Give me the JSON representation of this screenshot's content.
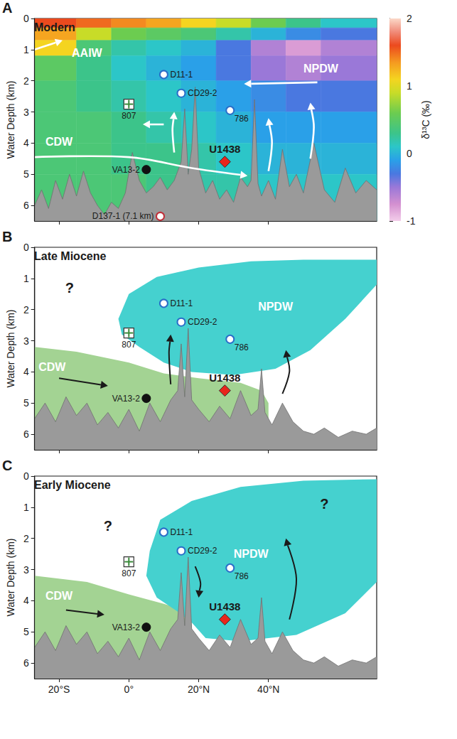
{
  "chart_data": [
    {
      "type": "section",
      "panel": "A",
      "title": "Modern",
      "ylabel": "Water Depth (km)",
      "xlim": [
        -27,
        71
      ],
      "xticks": [
        {
          "value": -20,
          "label": "20°S"
        },
        {
          "value": 0,
          "label": "0°"
        },
        {
          "value": 20,
          "label": "20°N"
        },
        {
          "value": 40,
          "label": "40°N"
        }
      ],
      "ylim": [
        0,
        6.5
      ],
      "yticks": [
        0,
        1,
        2,
        3,
        4,
        5,
        6
      ],
      "tick_labels": "y",
      "grid": false,
      "field": {
        "x_edges": [
          -27,
          -15,
          -5,
          5,
          15,
          25,
          35,
          45,
          55,
          71
        ],
        "y_edges": [
          0,
          0.3,
          0.7,
          1.2,
          2,
          3,
          4,
          5,
          6.5
        ],
        "values": [
          [
            1.6,
            1.5,
            1.4,
            1.3,
            1.1,
            0.9,
            0.6,
            0.3,
            0.1
          ],
          [
            1.3,
            0.9,
            0.6,
            0.5,
            0.4,
            0.2,
            0.0,
            -0.2,
            -0.3
          ],
          [
            1.1,
            0.4,
            0.2,
            0.1,
            0.0,
            -0.3,
            -0.6,
            -0.8,
            -0.6
          ],
          [
            0.5,
            0.3,
            0.1,
            0.0,
            -0.1,
            -0.3,
            -0.5,
            -0.6,
            -0.5
          ],
          [
            0.4,
            0.3,
            0.2,
            0.1,
            0.0,
            -0.1,
            -0.2,
            -0.3,
            -0.3
          ],
          [
            0.4,
            0.4,
            0.3,
            0.2,
            0.1,
            0.0,
            -0.1,
            -0.1,
            -0.1
          ],
          [
            0.4,
            0.4,
            0.3,
            0.3,
            0.2,
            0.1,
            0.0,
            0.0,
            0.0
          ],
          [
            0.4,
            0.4,
            0.4,
            0.3,
            0.2,
            0.2,
            0.1,
            0.1,
            0.1
          ]
        ],
        "clim": [
          -1,
          2
        ],
        "cticks": [
          -1,
          0,
          1,
          2
        ],
        "clabel": "δ¹³C (‰)"
      },
      "bathymetry": {
        "x": [
          -27,
          -25,
          -23,
          -21,
          -19,
          -17,
          -15,
          -13,
          -11,
          -9,
          -7,
          -5,
          -3,
          -1,
          1,
          3,
          5,
          7,
          9,
          11,
          13,
          15,
          16,
          17,
          18,
          19,
          20,
          22,
          24,
          26,
          28,
          30,
          32,
          34,
          35,
          36,
          37,
          38,
          40,
          42,
          44,
          46,
          48,
          50,
          53,
          56,
          59,
          62,
          65,
          68,
          71
        ],
        "depth": [
          6.0,
          5.5,
          6.1,
          5.2,
          5.8,
          5.0,
          5.7,
          4.9,
          5.6,
          6.0,
          6.3,
          5.9,
          6.1,
          5.6,
          4.3,
          5.2,
          5.6,
          5.4,
          5.1,
          5.5,
          5.2,
          4.6,
          2.9,
          5.0,
          4.2,
          2.2,
          4.8,
          5.6,
          5.2,
          5.8,
          5.5,
          5.9,
          5.1,
          5.4,
          5.2,
          2.6,
          5.3,
          5.7,
          5.2,
          5.8,
          4.2,
          5.4,
          5.0,
          5.6,
          4.0,
          5.5,
          5.9,
          4.8,
          5.6,
          5.2,
          5.5
        ]
      },
      "flows": [
        [
          [
            -27,
            1.0
          ],
          [
            -23,
            0.85
          ],
          [
            -19,
            0.7
          ]
        ],
        [
          [
            54,
            2.05
          ],
          [
            33,
            2.1
          ]
        ],
        [
          [
            10,
            3.4
          ],
          [
            4,
            3.4
          ]
        ],
        [
          [
            -27,
            4.45
          ],
          [
            0,
            4.45
          ],
          [
            18,
            4.8
          ],
          [
            34,
            5.05
          ]
        ],
        [
          [
            13,
            4.3
          ],
          [
            12.5,
            3.6
          ],
          [
            13,
            3.0
          ]
        ],
        [
          [
            40,
            4.9
          ],
          [
            41,
            4.0
          ],
          [
            40,
            3.2
          ]
        ],
        [
          [
            52,
            4.5
          ],
          [
            53,
            3.5
          ],
          [
            52,
            2.7
          ]
        ]
      ],
      "sites": [
        {
          "name": "D11-1",
          "x": 10,
          "y": 1.8,
          "marker": "open_circle",
          "color": "#2a6fc9"
        },
        {
          "name": "CD29-2",
          "x": 15,
          "y": 2.4,
          "marker": "open_circle",
          "color": "#2a6fc9"
        },
        {
          "name": "786",
          "x": 29,
          "y": 2.95,
          "marker": "open_circle",
          "color": "#2a6fc9"
        },
        {
          "name": "807",
          "x": 0,
          "y": 2.75,
          "marker": "cross_square",
          "color": "#3a8a3a"
        },
        {
          "name": "VA13-2",
          "x": 5,
          "y": 4.85,
          "marker": "filled_circle",
          "color": "#111111"
        },
        {
          "name": "U1438",
          "x": 27.5,
          "y": 4.6,
          "marker": "diamond",
          "color": "#e8261c"
        },
        {
          "name": "D137-1 (7.1 km)",
          "x": 9,
          "y": 6.35,
          "marker": "open_circle",
          "color": "#c0303a"
        }
      ],
      "annotations": [
        {
          "text": "AAIW",
          "x": -12,
          "y": 1.1,
          "color": "#ffffff"
        },
        {
          "text": "NPDW",
          "x": 55,
          "y": 1.6,
          "color": "#ffffff"
        },
        {
          "text": "CDW",
          "x": -20,
          "y": 3.95,
          "color": "#ffffff"
        }
      ]
    },
    {
      "type": "section",
      "panel": "B",
      "title": "Late Miocene",
      "ylabel": "Water Depth (km)",
      "xlim": [
        -27,
        71
      ],
      "xticks": [
        {
          "value": -20,
          "label": "20°S"
        },
        {
          "value": 0,
          "label": "0°"
        },
        {
          "value": 20,
          "label": "20°N"
        },
        {
          "value": 40,
          "label": "40°N"
        }
      ],
      "ylim": [
        0,
        6.5
      ],
      "yticks": [
        0,
        1,
        2,
        3,
        4,
        5,
        6
      ],
      "tick_labels": "y",
      "grid": false,
      "water_masses": [
        {
          "color": "#a3d393",
          "polygon": [
            [
              -27,
              3.2
            ],
            [
              -15,
              3.35
            ],
            [
              0,
              3.7
            ],
            [
              10,
              4.05
            ],
            [
              20,
              4.2
            ],
            [
              32,
              4.35
            ],
            [
              38,
              4.6
            ],
            [
              40,
              5.0
            ],
            [
              40,
              6.5
            ],
            [
              -27,
              6.5
            ]
          ]
        },
        {
          "color": "#45d1cf",
          "polygon": [
            [
              -3,
              2.3
            ],
            [
              0,
              1.5
            ],
            [
              8,
              0.95
            ],
            [
              20,
              0.65
            ],
            [
              35,
              0.45
            ],
            [
              50,
              0.4
            ],
            [
              71,
              0.4
            ],
            [
              71,
              1.2
            ],
            [
              62,
              2.3
            ],
            [
              52,
              3.3
            ],
            [
              42,
              3.9
            ],
            [
              30,
              4.1
            ],
            [
              18,
              4.0
            ],
            [
              10,
              3.7
            ],
            [
              3,
              3.2
            ],
            [
              -2,
              2.8
            ]
          ]
        }
      ],
      "bathymetry": {
        "x": [
          -27,
          -24,
          -21,
          -18,
          -15,
          -12,
          -9,
          -6,
          -3,
          0,
          3,
          6,
          9,
          12,
          14,
          15,
          16,
          17,
          18,
          20,
          23,
          26,
          29,
          32,
          35,
          37,
          38,
          39,
          41,
          44,
          47,
          50,
          53,
          56,
          60,
          64,
          68,
          71
        ],
        "depth": [
          5.5,
          5.0,
          5.6,
          4.8,
          5.4,
          5.0,
          5.7,
          5.3,
          5.8,
          5.2,
          5.9,
          5.0,
          5.6,
          4.9,
          4.6,
          3.1,
          4.8,
          2.6,
          4.9,
          5.2,
          5.6,
          5.1,
          5.5,
          4.6,
          5.4,
          5.2,
          3.9,
          5.3,
          5.7,
          5.0,
          5.6,
          5.9,
          6.0,
          5.8,
          6.1,
          5.9,
          6.0,
          5.8
        ]
      },
      "flows": [
        [
          [
            -20,
            4.2
          ],
          [
            -6,
            4.45
          ]
        ],
        [
          [
            12,
            4.4
          ],
          [
            11.5,
            3.4
          ],
          [
            12,
            2.8
          ]
        ],
        [
          [
            44,
            4.7
          ],
          [
            46,
            4.0
          ],
          [
            45,
            3.3
          ]
        ]
      ],
      "sites": [
        {
          "name": "D11-1",
          "x": 10,
          "y": 1.8,
          "marker": "open_circle",
          "color": "#2a6fc9"
        },
        {
          "name": "CD29-2",
          "x": 15,
          "y": 2.4,
          "marker": "open_circle",
          "color": "#2a6fc9"
        },
        {
          "name": "786",
          "x": 29,
          "y": 2.95,
          "marker": "open_circle",
          "color": "#2a6fc9"
        },
        {
          "name": "807",
          "x": 0,
          "y": 2.75,
          "marker": "cross_square",
          "color": "#3a8a3a"
        },
        {
          "name": "VA13-2",
          "x": 5,
          "y": 4.85,
          "marker": "filled_circle",
          "color": "#111111"
        },
        {
          "name": "U1438",
          "x": 27.5,
          "y": 4.6,
          "marker": "diamond",
          "color": "#e8261c"
        }
      ],
      "annotations": [
        {
          "text": "?",
          "x": -17,
          "y": 1.3,
          "color": "#1a1a1a"
        },
        {
          "text": "NPDW",
          "x": 42,
          "y": 1.9,
          "color": "#ffffff"
        },
        {
          "text": "CDW",
          "x": -22,
          "y": 3.85,
          "color": "#ffffff"
        }
      ]
    },
    {
      "type": "section",
      "panel": "C",
      "title": "Early Miocene",
      "ylabel": "Water Depth (km)",
      "xlim": [
        -27,
        71
      ],
      "xticks": [
        {
          "value": -20,
          "label": "20°S"
        },
        {
          "value": 0,
          "label": "0°"
        },
        {
          "value": 20,
          "label": "20°N"
        },
        {
          "value": 40,
          "label": "40°N"
        }
      ],
      "ylim": [
        0,
        6.5
      ],
      "yticks": [
        0,
        1,
        2,
        3,
        4,
        5,
        6
      ],
      "grid": false,
      "water_masses": [
        {
          "color": "#a3d393",
          "polygon": [
            [
              -27,
              3.2
            ],
            [
              -12,
              3.4
            ],
            [
              0,
              3.8
            ],
            [
              10,
              4.1
            ],
            [
              16,
              4.3
            ],
            [
              18,
              4.6
            ],
            [
              18,
              6.5
            ],
            [
              -27,
              6.5
            ]
          ]
        },
        {
          "color": "#45d1cf",
          "polygon": [
            [
              6,
              2.4
            ],
            [
              9,
              1.4
            ],
            [
              18,
              0.8
            ],
            [
              32,
              0.35
            ],
            [
              50,
              0.15
            ],
            [
              71,
              0.1
            ],
            [
              71,
              3.4
            ],
            [
              62,
              4.4
            ],
            [
              48,
              5.1
            ],
            [
              32,
              5.3
            ],
            [
              22,
              5.2
            ],
            [
              18,
              4.7
            ],
            [
              14,
              4.35
            ],
            [
              8,
              3.9
            ],
            [
              5,
              3.2
            ]
          ]
        }
      ],
      "bathymetry": {
        "x": [
          -27,
          -24,
          -21,
          -18,
          -15,
          -12,
          -9,
          -6,
          -3,
          0,
          3,
          6,
          9,
          12,
          14,
          15,
          16,
          17,
          18,
          20,
          23,
          26,
          29,
          32,
          35,
          37,
          38,
          39,
          41,
          44,
          47,
          50,
          53,
          56,
          60,
          64,
          68,
          71
        ],
        "depth": [
          5.5,
          5.0,
          5.6,
          4.8,
          5.4,
          5.0,
          5.7,
          5.3,
          5.8,
          5.2,
          5.9,
          5.0,
          5.6,
          4.9,
          4.6,
          3.1,
          4.8,
          2.6,
          4.9,
          5.2,
          5.6,
          5.1,
          5.5,
          4.6,
          5.4,
          5.2,
          3.9,
          5.3,
          5.7,
          5.0,
          5.6,
          5.9,
          6.0,
          5.8,
          6.1,
          5.9,
          6.0,
          5.8
        ]
      },
      "flows": [
        [
          [
            -18,
            4.3
          ],
          [
            -7,
            4.45
          ]
        ],
        [
          [
            19,
            2.9
          ],
          [
            20.5,
            3.4
          ],
          [
            20,
            3.9
          ]
        ],
        [
          [
            46,
            4.6
          ],
          [
            48,
            3.3
          ],
          [
            45,
            2.0
          ]
        ]
      ],
      "sites": [
        {
          "name": "D11-1",
          "x": 10,
          "y": 1.8,
          "marker": "open_circle",
          "color": "#2a6fc9"
        },
        {
          "name": "CD29-2",
          "x": 15,
          "y": 2.4,
          "marker": "open_circle",
          "color": "#2a6fc9"
        },
        {
          "name": "786",
          "x": 29,
          "y": 2.95,
          "marker": "open_circle",
          "color": "#2a6fc9"
        },
        {
          "name": "807",
          "x": 0,
          "y": 2.75,
          "marker": "cross_square",
          "color": "#3a8a3a"
        },
        {
          "name": "VA13-2",
          "x": 5,
          "y": 4.85,
          "marker": "filled_circle",
          "color": "#111111"
        },
        {
          "name": "U1438",
          "x": 27.5,
          "y": 4.6,
          "marker": "diamond",
          "color": "#e8261c"
        }
      ],
      "annotations": [
        {
          "text": "?",
          "x": -6,
          "y": 1.6,
          "color": "#1a1a1a"
        },
        {
          "text": "?",
          "x": 56,
          "y": 0.9,
          "color": "#1a1a1a"
        },
        {
          "text": "NPDW",
          "x": 35,
          "y": 2.5,
          "color": "#ffffff"
        },
        {
          "text": "CDW",
          "x": -20,
          "y": 3.85,
          "color": "#ffffff"
        }
      ]
    }
  ]
}
